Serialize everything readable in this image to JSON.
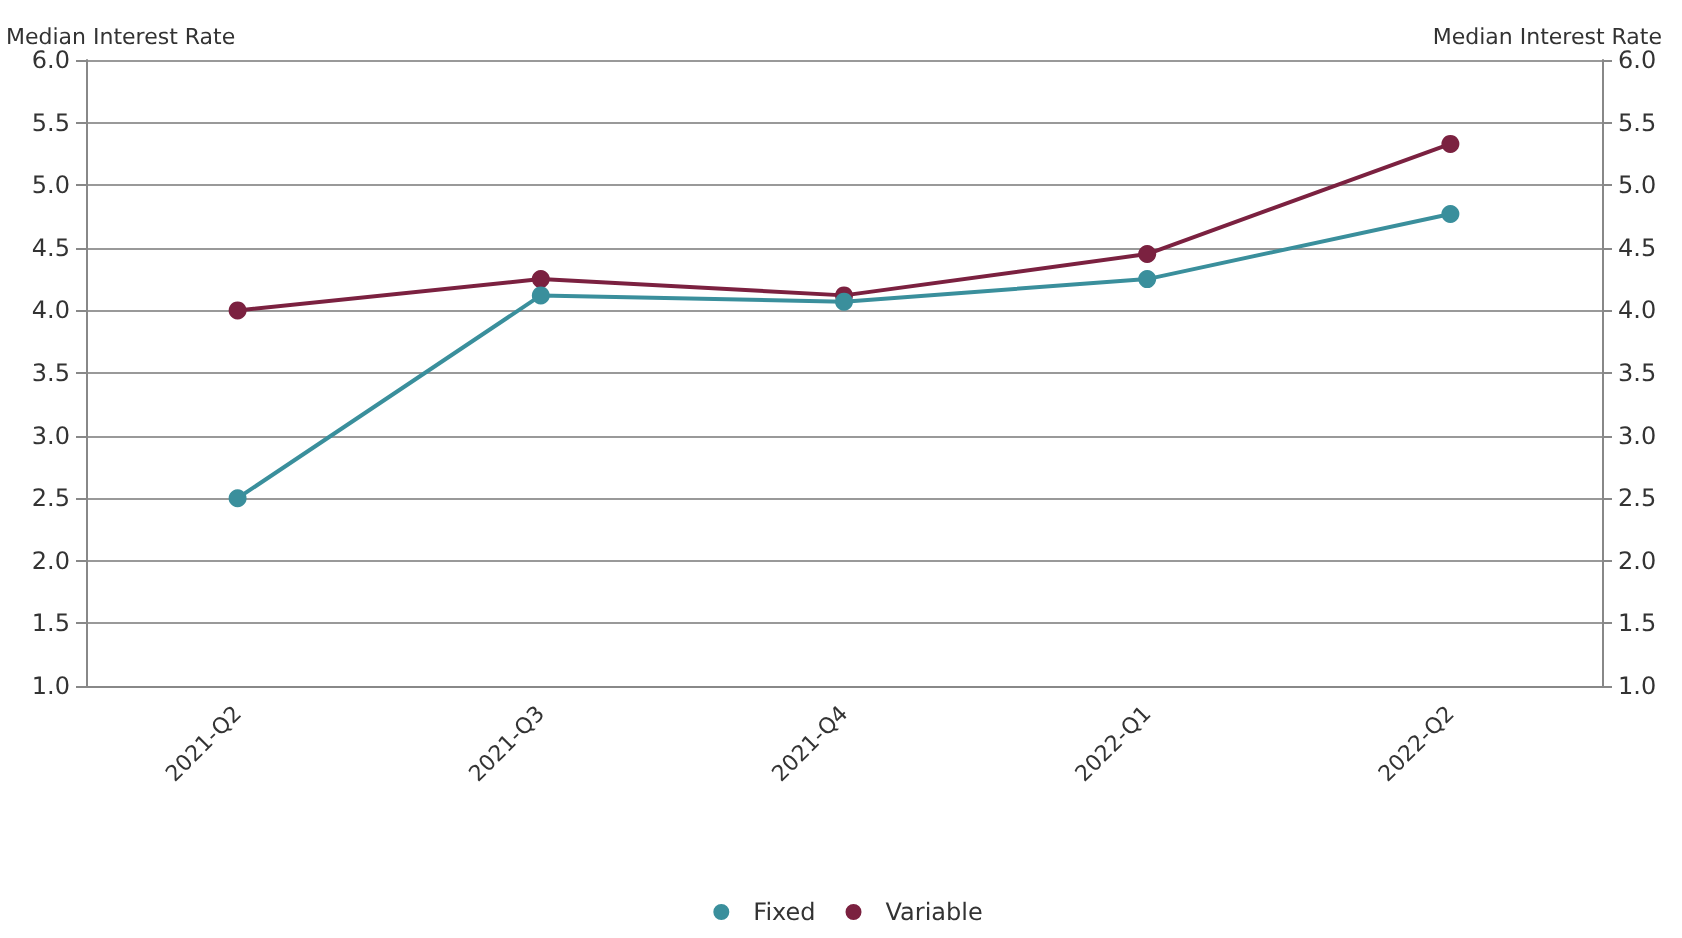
{
  "chart_data": {
    "type": "line",
    "ylabel": "Median Interest Rate",
    "y2label": "Median Interest Rate",
    "categories": [
      "2021-Q2",
      "2021-Q3",
      "2021-Q4",
      "2022-Q1",
      "2022-Q2"
    ],
    "series": [
      {
        "name": "Fixed",
        "color": "#3a8f9c",
        "values": [
          2.5,
          4.12,
          4.07,
          4.25,
          4.77
        ]
      },
      {
        "name": "Variable",
        "color": "#7b2140",
        "values": [
          4.0,
          4.25,
          4.12,
          4.45,
          5.33
        ]
      }
    ],
    "ylim": [
      1,
      6
    ],
    "yticks": [
      {
        "value": 1,
        "label": "1.0"
      },
      {
        "value": 1.5,
        "label": "1.5"
      },
      {
        "value": 2,
        "label": "2.0"
      },
      {
        "value": 2.5,
        "label": "2.5"
      },
      {
        "value": 3,
        "label": "3.0"
      },
      {
        "value": 3.5,
        "label": "3.5"
      },
      {
        "value": 4,
        "label": "4.0"
      },
      {
        "value": 4.5,
        "label": "4.5"
      },
      {
        "value": 5,
        "label": "5.0"
      },
      {
        "value": 5.5,
        "label": "5.5"
      },
      {
        "value": 6,
        "label": "6.0"
      }
    ],
    "y2lim": [
      1,
      6
    ],
    "y2ticks": [
      {
        "value": 1,
        "label": "1.0"
      },
      {
        "value": 1.5,
        "label": "1.5"
      },
      {
        "value": 2,
        "label": "2.0"
      },
      {
        "value": 2.5,
        "label": "2.5"
      },
      {
        "value": 3,
        "label": "3.0"
      },
      {
        "value": 3.5,
        "label": "3.5"
      },
      {
        "value": 4,
        "label": "4.0"
      },
      {
        "value": 4.5,
        "label": "4.5"
      },
      {
        "value": 5,
        "label": "5.0"
      },
      {
        "value": 5.5,
        "label": "5.5"
      },
      {
        "value": 6,
        "label": "6.0"
      }
    ],
    "grid": "y",
    "legend": "bottom",
    "marker": "circle",
    "line_style": "solid"
  }
}
